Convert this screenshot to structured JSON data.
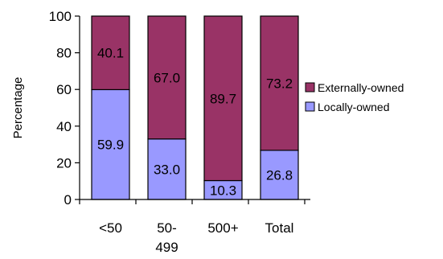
{
  "chart_data": {
    "type": "bar",
    "stacked": true,
    "percent_stacked": true,
    "categories": [
      "<50",
      "50-499",
      "500+",
      "Total"
    ],
    "category_label_lines": [
      [
        "<50"
      ],
      [
        "50-",
        "499"
      ],
      [
        "500+"
      ],
      [
        "Total"
      ]
    ],
    "series": [
      {
        "name": "Locally-owned",
        "values": [
          59.9,
          33.0,
          10.3,
          26.8
        ],
        "labels": [
          "59.9",
          "33.0",
          "10.3",
          "26.8"
        ],
        "color": "#9999ff"
      },
      {
        "name": "Externally-owned",
        "values": [
          40.1,
          67.0,
          89.7,
          73.2
        ],
        "labels": [
          "40.1",
          "67.0",
          "89.7",
          "73.2"
        ],
        "color": "#993366"
      }
    ],
    "title": "",
    "xlabel": "",
    "ylabel": "Percentage",
    "ylim": [
      0,
      100
    ],
    "yticks": [
      0,
      20,
      40,
      60,
      80,
      100
    ],
    "ytick_labels": [
      "0",
      "20",
      "40",
      "60",
      "80",
      "100"
    ],
    "grid": false,
    "legend": {
      "position": "right",
      "order": [
        "Externally-owned",
        "Locally-owned"
      ]
    }
  }
}
